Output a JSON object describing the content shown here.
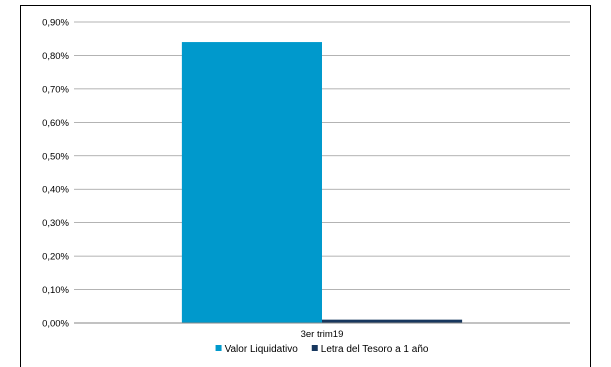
{
  "chart_data": {
    "type": "bar",
    "categories": [
      "3er trim19"
    ],
    "series": [
      {
        "name": "Valor Liquidativo",
        "values": [
          0.84
        ],
        "color": "#0099cc"
      },
      {
        "name": "Letra del Tesoro a 1 año",
        "values": [
          0.01
        ],
        "color": "#17375e"
      }
    ],
    "y_ticks": [
      "0,00%",
      "0,10%",
      "0,20%",
      "0,30%",
      "0,40%",
      "0,50%",
      "0,60%",
      "0,70%",
      "0,80%",
      "0,90%"
    ],
    "ylim": [
      0,
      0.9
    ],
    "y_unit": "%",
    "grid": true,
    "legend_position": "bottom",
    "title": "",
    "xlabel": "",
    "ylabel": ""
  }
}
